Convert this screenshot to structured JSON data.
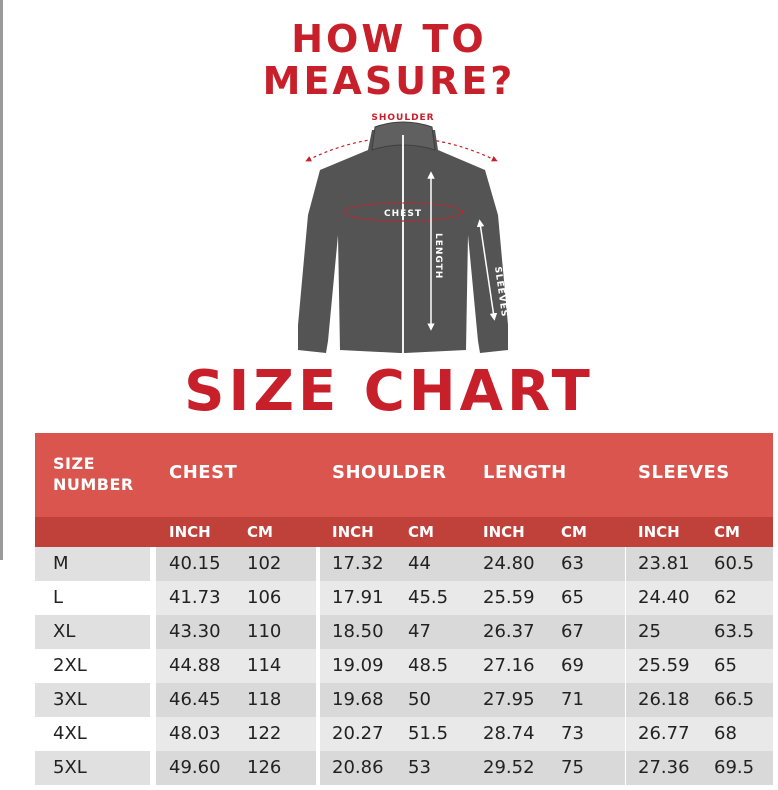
{
  "header": {
    "title_line1": "HOW TO",
    "title_line2": "MEASURE?",
    "subtitle": "SIZE CHART"
  },
  "diagram": {
    "labels": {
      "shoulder": "SHOULDER",
      "chest": "CHEST",
      "length": "LENGTH",
      "sleeves": "SLEEVES"
    },
    "colors": {
      "jacket": "#545454",
      "accent": "#c8202a"
    }
  },
  "table": {
    "size_header": "SIZE\nNUMBER",
    "groups": [
      "CHEST",
      "SHOULDER",
      "LENGTH",
      "SLEEVES"
    ],
    "units": [
      "INCH",
      "CM"
    ],
    "rows": [
      {
        "size": "M",
        "values": [
          "40.15",
          "102",
          "17.32",
          "44",
          "24.80",
          "63",
          "23.81",
          "60.5"
        ]
      },
      {
        "size": "L",
        "values": [
          "41.73",
          "106",
          "17.91",
          "45.5",
          "25.59",
          "65",
          "24.40",
          "62"
        ]
      },
      {
        "size": "XL",
        "values": [
          "43.30",
          "110",
          "18.50",
          "47",
          "26.37",
          "67",
          "25",
          "63.5"
        ]
      },
      {
        "size": "2XL",
        "values": [
          "44.88",
          "114",
          "19.09",
          "48.5",
          "27.16",
          "69",
          "25.59",
          "65"
        ]
      },
      {
        "size": "3XL",
        "values": [
          "46.45",
          "118",
          "19.68",
          "50",
          "27.95",
          "71",
          "26.18",
          "66.5"
        ]
      },
      {
        "size": "4XL",
        "values": [
          "48.03",
          "122",
          "20.27",
          "51.5",
          "28.74",
          "73",
          "26.77",
          "68"
        ]
      },
      {
        "size": "5XL",
        "values": [
          "49.60",
          "126",
          "20.86",
          "53",
          "29.52",
          "75",
          "27.36",
          "69.5"
        ]
      }
    ],
    "colors": {
      "header": "#d9554e",
      "subheader": "#c0413a"
    }
  }
}
